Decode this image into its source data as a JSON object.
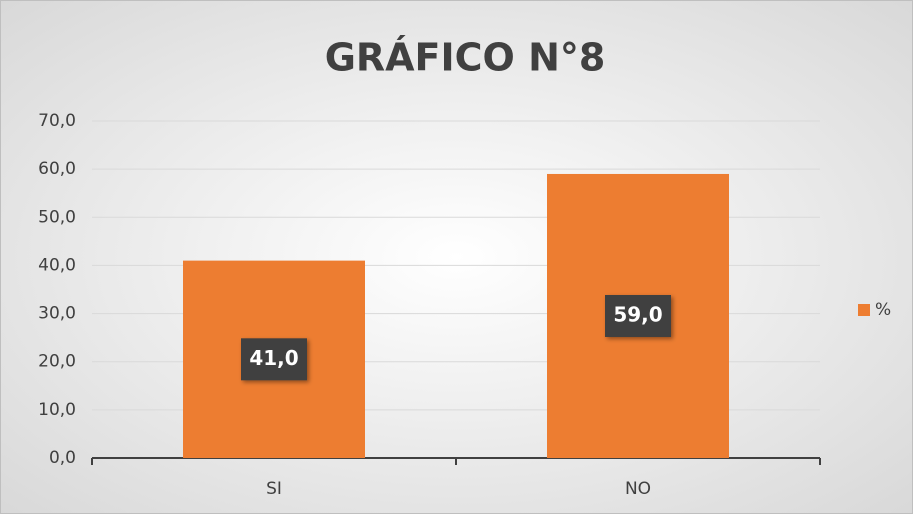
{
  "chart_data": {
    "type": "bar",
    "title": "GRÁFICO N°8",
    "categories": [
      "SI",
      "NO"
    ],
    "series": [
      {
        "name": "%",
        "color": "#ed7d31",
        "values": [
          41,
          59
        ],
        "value_labels": [
          "41,0",
          "59,0"
        ]
      }
    ],
    "ylim": [
      0,
      70
    ],
    "yticks": [
      {
        "value": 0,
        "label": "0,0"
      },
      {
        "value": 10,
        "label": "10,0"
      },
      {
        "value": 20,
        "label": "20,0"
      },
      {
        "value": 30,
        "label": "30,0"
      },
      {
        "value": 40,
        "label": "40,0"
      },
      {
        "value": 50,
        "label": "50,0"
      },
      {
        "value": 60,
        "label": "60,0"
      },
      {
        "value": 70,
        "label": "70,0"
      }
    ],
    "grid": true,
    "legend": "right"
  }
}
